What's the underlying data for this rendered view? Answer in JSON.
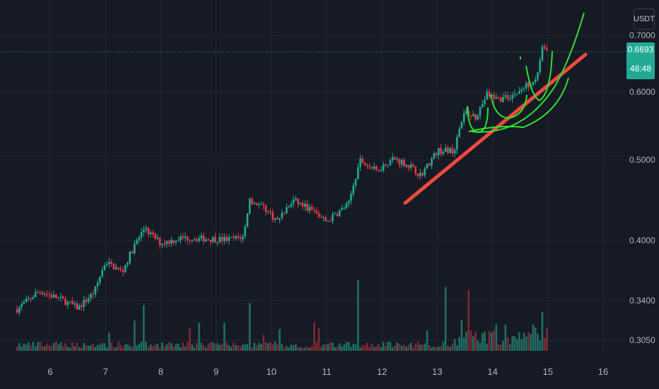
{
  "quote_currency": "USDT",
  "current_price": "0.6693",
  "countdown": "48:48",
  "colors": {
    "background": "#161a25",
    "up": "#22ab94",
    "down": "#f23645",
    "trendline": "#ef4a3c",
    "drawing": "#2fe02f",
    "grid": "#232734",
    "text": "#b2b5be"
  },
  "chart_data": {
    "type": "candlestick",
    "instrument_quote": "USDT",
    "y_scale": "log",
    "ylim": [
      0.29,
      0.72
    ],
    "y_ticks": [
      "0.7000",
      "0.6000",
      "0.5000",
      "0.4000",
      "0.3400",
      "0.3050"
    ],
    "x_ticks": [
      "6",
      "7",
      "8",
      "9",
      "10",
      "11",
      "12",
      "13",
      "14",
      "15",
      "16"
    ],
    "last_price": 0.6693,
    "close_path": [
      {
        "day": 5.4,
        "close": 0.332
      },
      {
        "day": 5.8,
        "close": 0.349
      },
      {
        "day": 6.2,
        "close": 0.341
      },
      {
        "day": 6.5,
        "close": 0.333
      },
      {
        "day": 6.8,
        "close": 0.348
      },
      {
        "day": 7.0,
        "close": 0.378
      },
      {
        "day": 7.3,
        "close": 0.367
      },
      {
        "day": 7.5,
        "close": 0.392
      },
      {
        "day": 7.7,
        "close": 0.413
      },
      {
        "day": 8.0,
        "close": 0.397
      },
      {
        "day": 8.4,
        "close": 0.403
      },
      {
        "day": 8.8,
        "close": 0.402
      },
      {
        "day": 9.2,
        "close": 0.401
      },
      {
        "day": 9.5,
        "close": 0.404
      },
      {
        "day": 9.6,
        "close": 0.448
      },
      {
        "day": 9.9,
        "close": 0.436
      },
      {
        "day": 10.1,
        "close": 0.422
      },
      {
        "day": 10.4,
        "close": 0.447
      },
      {
        "day": 10.7,
        "close": 0.436
      },
      {
        "day": 11.0,
        "close": 0.421
      },
      {
        "day": 11.4,
        "close": 0.443
      },
      {
        "day": 11.6,
        "close": 0.499
      },
      {
        "day": 11.9,
        "close": 0.485
      },
      {
        "day": 12.2,
        "close": 0.502
      },
      {
        "day": 12.5,
        "close": 0.492
      },
      {
        "day": 12.7,
        "close": 0.479
      },
      {
        "day": 13.0,
        "close": 0.512
      },
      {
        "day": 13.3,
        "close": 0.513
      },
      {
        "day": 13.5,
        "close": 0.568
      },
      {
        "day": 13.7,
        "close": 0.562
      },
      {
        "day": 13.9,
        "close": 0.596
      },
      {
        "day": 14.1,
        "close": 0.588
      },
      {
        "day": 14.3,
        "close": 0.592
      },
      {
        "day": 14.5,
        "close": 0.602
      },
      {
        "day": 14.8,
        "close": 0.625
      },
      {
        "day": 14.9,
        "close": 0.677
      },
      {
        "day": 15.0,
        "close": 0.669
      }
    ],
    "volume_spikes_days": [
      11.55,
      13.15,
      9.6,
      7.7,
      13.55
    ]
  }
}
